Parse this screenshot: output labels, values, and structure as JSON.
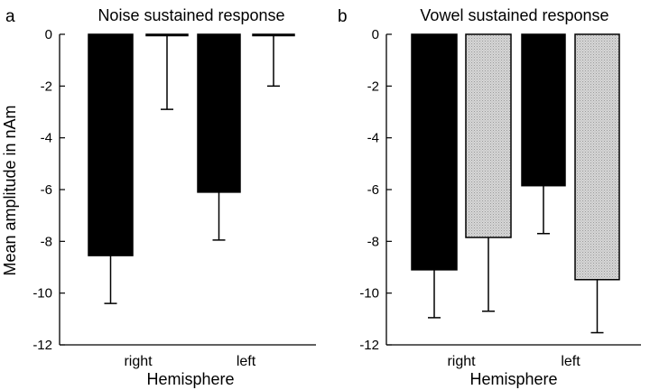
{
  "chart_data": [
    {
      "type": "bar",
      "panel_letter": "a",
      "title": "Noise sustained response",
      "xlabel": "Hemisphere",
      "ylabel": "Mean amplitude in nAm",
      "categories": [
        "right",
        "left"
      ],
      "ylim": [
        -12,
        0
      ],
      "yticks": [
        0,
        -2,
        -4,
        -6,
        -8,
        -10,
        -12
      ],
      "series": [
        {
          "fill": "black",
          "color": "#000000",
          "values": [
            -8.55,
            -6.1
          ],
          "errors": [
            1.85,
            1.85
          ]
        },
        {
          "fill": "light-gray-stipple",
          "color": "#cccccc",
          "values": [
            -0.05,
            -0.03
          ],
          "errors": [
            2.85,
            1.97
          ]
        }
      ],
      "grid": false,
      "legend": "none"
    },
    {
      "type": "bar",
      "panel_letter": "b",
      "title": "Vowel sustained response",
      "xlabel": "Hemisphere",
      "ylabel": "",
      "categories": [
        "right",
        "left"
      ],
      "ylim": [
        -12,
        0
      ],
      "yticks": [
        0,
        -2,
        -4,
        -6,
        -8,
        -10,
        -12
      ],
      "series": [
        {
          "fill": "black",
          "color": "#000000",
          "values": [
            -9.1,
            -5.85
          ],
          "errors": [
            1.85,
            1.85
          ]
        },
        {
          "fill": "light-gray-stipple",
          "color": "#cccccc",
          "values": [
            -7.85,
            -9.48
          ],
          "errors": [
            2.85,
            2.05
          ]
        }
      ],
      "grid": false,
      "legend": "none"
    }
  ]
}
